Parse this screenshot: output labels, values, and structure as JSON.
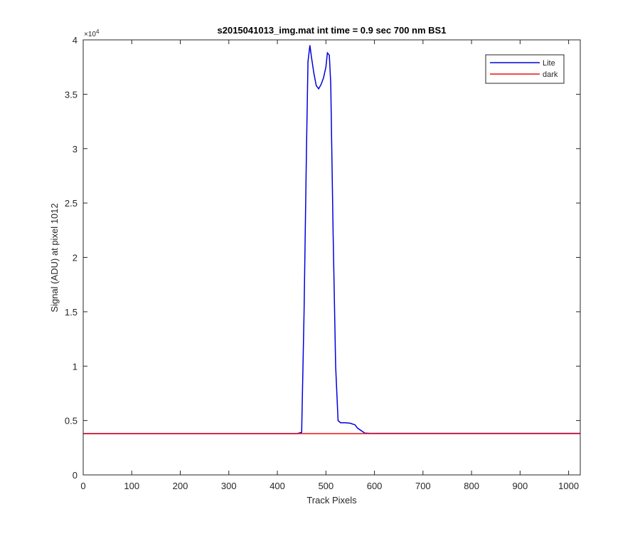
{
  "chart_data": {
    "type": "line",
    "title": "s2015041013_img.mat int time = 0.9 sec  700 nm BS1",
    "xlabel": "Track Pixels",
    "ylabel": "Signal (ADU) at pixel 1012",
    "xlim": [
      0,
      1024
    ],
    "ylim": [
      0,
      40000
    ],
    "x_ticks": [
      0,
      100,
      200,
      300,
      400,
      500,
      600,
      700,
      800,
      900,
      1000
    ],
    "x_tick_labels": [
      "0",
      "100",
      "200",
      "300",
      "400",
      "500",
      "600",
      "700",
      "800",
      "900",
      "1000"
    ],
    "y_ticks": [
      0,
      5000,
      10000,
      15000,
      20000,
      25000,
      30000,
      35000,
      40000
    ],
    "y_tick_labels": [
      "0",
      "0.5",
      "1",
      "1.5",
      "2",
      "2.5",
      "3",
      "3.5",
      "4"
    ],
    "y_exponent_label": "×10",
    "y_exponent_power": "4",
    "grid": false,
    "legend_position": "top-right",
    "series": [
      {
        "name": "Lite",
        "color": "#0000dd",
        "x": [
          0,
          440,
          450,
          455,
          460,
          463,
          467,
          470,
          475,
          480,
          485,
          490,
          495,
          500,
          503,
          507,
          510,
          515,
          520,
          525,
          530,
          540,
          550,
          560,
          565,
          575,
          580,
          590,
          700,
          800,
          900,
          1024
        ],
        "y": [
          3800,
          3800,
          3900,
          15000,
          30000,
          38000,
          39500,
          38500,
          37000,
          35800,
          35500,
          35900,
          36500,
          37500,
          38800,
          38600,
          36000,
          22000,
          10000,
          5000,
          4800,
          4800,
          4750,
          4600,
          4300,
          4000,
          3850,
          3820,
          3820,
          3820,
          3820,
          3820
        ]
      },
      {
        "name": "dark",
        "color": "#ee1111",
        "x": [
          0,
          1024
        ],
        "y": [
          3800,
          3800
        ]
      }
    ]
  }
}
